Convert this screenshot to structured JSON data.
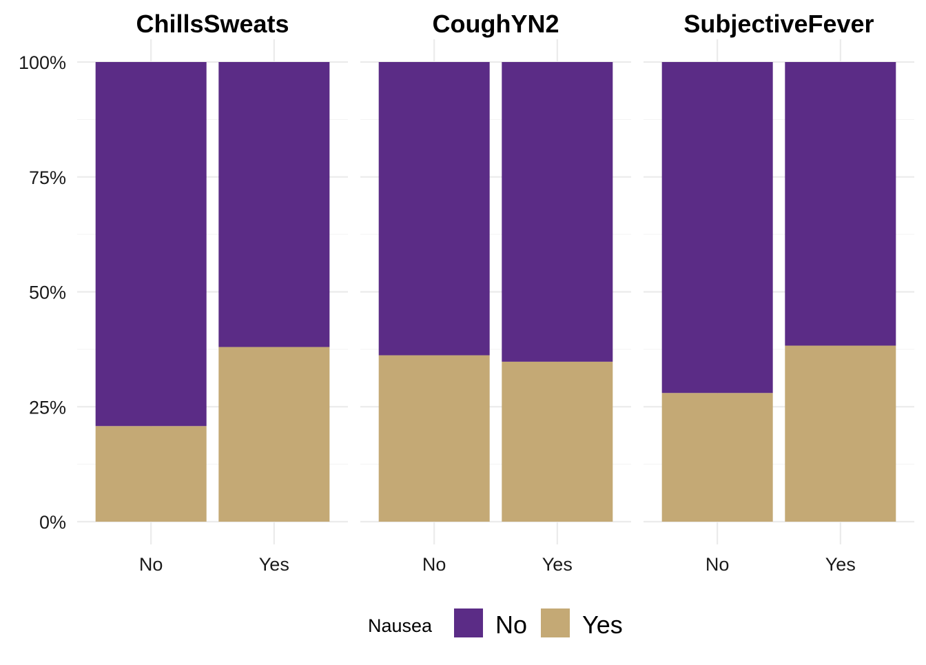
{
  "chart_data": {
    "type": "bar",
    "stacked": "percent",
    "facets": [
      {
        "title": "ChillsSweats",
        "categories": [
          "No",
          "Yes"
        ],
        "series": [
          {
            "name": "No",
            "values": [
              0.792,
              0.62
            ]
          },
          {
            "name": "Yes",
            "values": [
              0.208,
              0.38
            ]
          }
        ]
      },
      {
        "title": "CoughYN2",
        "categories": [
          "No",
          "Yes"
        ],
        "series": [
          {
            "name": "No",
            "values": [
              0.638,
              0.652
            ]
          },
          {
            "name": "Yes",
            "values": [
              0.362,
              0.348
            ]
          }
        ]
      },
      {
        "title": "SubjectiveFever",
        "categories": [
          "No",
          "Yes"
        ],
        "series": [
          {
            "name": "No",
            "values": [
              0.72,
              0.617
            ]
          },
          {
            "name": "Yes",
            "values": [
              0.28,
              0.383
            ]
          }
        ]
      }
    ],
    "y_ticks": [
      "0%",
      "25%",
      "50%",
      "75%",
      "100%"
    ],
    "y_tick_values": [
      0,
      0.25,
      0.5,
      0.75,
      1.0
    ],
    "ylim": [
      0,
      1
    ],
    "legend": {
      "title": "Nausea",
      "position": "bottom",
      "items": [
        {
          "label": "No",
          "color": "#5b2c86"
        },
        {
          "label": "Yes",
          "color": "#c4a975"
        }
      ]
    },
    "colors": {
      "No": "#5b2c86",
      "Yes": "#c4a975"
    },
    "grid": true
  }
}
